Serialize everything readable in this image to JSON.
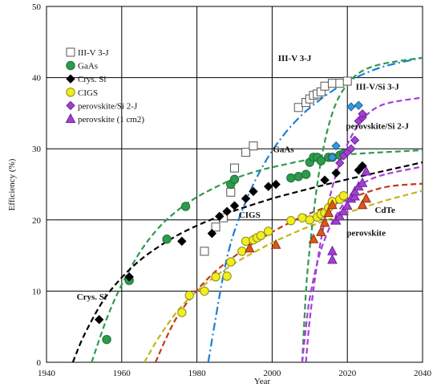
{
  "chart_data": {
    "type": "scatter",
    "title": "",
    "xlabel": "Year",
    "ylabel": "Efficiency (%)",
    "xlim": [
      1940,
      2040
    ],
    "ylim": [
      0,
      50
    ],
    "xticks": [
      1940,
      1960,
      1980,
      2000,
      2020,
      2040
    ],
    "yticks": [
      0,
      10,
      20,
      30,
      40,
      50
    ],
    "grid": true,
    "legend_position": "top-left",
    "legend": [
      {
        "label": "III-V 3-J",
        "marker": "square",
        "fill": "#ffffff",
        "stroke": "#555555"
      },
      {
        "label": "GaAs",
        "marker": "circle",
        "fill": "#2e9a4c",
        "stroke": "#1f6e35"
      },
      {
        "label": "Crys. Si",
        "marker": "diamond",
        "fill": "#000000",
        "stroke": "#000000"
      },
      {
        "label": "CIGS",
        "marker": "circle",
        "fill": "#f2ee1c",
        "stroke": "#8a8a20"
      },
      {
        "label": "perovskite/Si 2-J",
        "marker": "diamond",
        "fill": "#a33fd6",
        "stroke": "#6d2494"
      },
      {
        "label": "perovskite (1 cm2)",
        "marker": "triangle",
        "fill": "#a33fd6",
        "stroke": "#6d2494"
      }
    ],
    "series": [
      {
        "marker": "square",
        "fill": "#ffffff",
        "stroke": "#555555",
        "x": [
          1982,
          1985,
          1987,
          1989,
          1990,
          1993,
          1995,
          2007,
          2009,
          2010,
          2011,
          2012,
          2013,
          2014,
          2016,
          2018,
          2020
        ],
        "y": [
          15.6,
          19.0,
          20.3,
          23.9,
          27.3,
          29.5,
          30.4,
          35.8,
          36.5,
          37.0,
          37.5,
          37.7,
          38.0,
          38.8,
          39.2,
          39.2,
          39.5
        ]
      },
      {
        "marker": "circle",
        "fill": "#2e9a4c",
        "stroke": "#1f6e35",
        "x": [
          1956,
          1962,
          1972,
          1977,
          1989,
          1990,
          2005,
          2007,
          2009,
          2010,
          2011,
          2012,
          2013,
          2015,
          2016,
          2018,
          2019
        ],
        "y": [
          3.2,
          11.5,
          17.3,
          21.9,
          25.0,
          25.7,
          25.9,
          26.1,
          26.4,
          28.1,
          28.8,
          28.8,
          28.3,
          28.8,
          28.8,
          29.1,
          29.3
        ]
      },
      {
        "marker": "diamond",
        "fill": "#000000",
        "stroke": "#000000",
        "x": [
          1954,
          1962,
          1976,
          1984,
          1986,
          1988,
          1990,
          1993,
          1995,
          1999,
          2001,
          2014,
          2017,
          2023,
          2024
        ],
        "y": [
          6.0,
          12.0,
          17.0,
          18.1,
          20.5,
          21.2,
          22.0,
          23.0,
          24.0,
          24.7,
          25.0,
          25.6,
          26.6,
          27.0,
          27.6
        ]
      },
      {
        "marker": "circle",
        "fill": "#f2ee1c",
        "stroke": "#8a8a20",
        "x": [
          1976,
          1978,
          1982,
          1985,
          1988,
          1989,
          1992,
          1993,
          1995,
          1996,
          1997,
          1999,
          2005,
          2008,
          2010,
          2012,
          2013,
          2014,
          2015,
          2016,
          2016,
          2018,
          2019
        ],
        "y": [
          7.0,
          9.4,
          10.0,
          12.0,
          12.1,
          14.1,
          15.6,
          17.0,
          17.2,
          17.5,
          17.8,
          18.4,
          19.9,
          20.3,
          20.0,
          20.4,
          20.8,
          21.0,
          21.7,
          22.3,
          22.6,
          22.9,
          23.4
        ]
      },
      {
        "marker": "triangle",
        "fill": "#e0551c",
        "stroke": "#8a3312",
        "x": [
          1994,
          2001,
          2011,
          2013,
          2014,
          2015,
          2016,
          2024,
          2025
        ],
        "y": [
          16.0,
          16.5,
          17.3,
          18.3,
          19.6,
          21.0,
          22.1,
          22.1,
          23.0
        ]
      },
      {
        "marker": "diamond",
        "fill": "#3399dd",
        "stroke": "#1f6699",
        "x": [
          2016,
          2017,
          2021,
          2023
        ],
        "y": [
          28.8,
          30.4,
          35.9,
          36.1
        ]
      },
      {
        "marker": "diamond",
        "fill": "#a33fd6",
        "stroke": "#6d2494",
        "x": [
          2018,
          2019,
          2020,
          2021,
          2022,
          2023,
          2024,
          2024
        ],
        "y": [
          28.0,
          29.0,
          29.5,
          30.0,
          31.2,
          33.9,
          34.4,
          34.9
        ]
      },
      {
        "marker": "triangle",
        "fill": "#a33fd6",
        "stroke": "#6d2494",
        "x": [
          2016,
          2016,
          2017,
          2018,
          2019,
          2020,
          2021,
          2022,
          2022,
          2023,
          2024,
          2025
        ],
        "y": [
          14.4,
          15.6,
          19.9,
          20.5,
          21.2,
          22.0,
          23.0,
          23.3,
          24.0,
          24.7,
          25.2,
          26.8
        ]
      }
    ],
    "fit_curves": [
      {
        "color": "#1a7fd4",
        "dash": "10,4,2,4",
        "x": [
          1983,
          1988,
          1993,
          1998,
          2003,
          2008,
          2013,
          2018,
          2023,
          2030,
          2040
        ],
        "y": [
          0,
          14.7,
          22.6,
          28.0,
          31.9,
          34.8,
          37.0,
          38.8,
          40.2,
          41.6,
          42.8
        ]
      },
      {
        "color": "#2e9a4c",
        "dash": "7,4",
        "x": [
          1952,
          1956,
          1960,
          1965,
          1970,
          1975,
          1980,
          1985,
          1990,
          1995,
          2000,
          2010,
          2020,
          2040
        ],
        "y": [
          0,
          6.1,
          10.9,
          15.6,
          19.0,
          21.4,
          23.2,
          24.6,
          25.8,
          26.7,
          27.4,
          28.5,
          29.2,
          29.8
        ]
      },
      {
        "color": "#000000",
        "dash": "7,4",
        "x": [
          1947,
          1950,
          1955,
          1960,
          1965,
          1970,
          1975,
          1980,
          1985,
          1990,
          2000,
          2010,
          2020,
          2040
        ],
        "y": [
          0,
          3.8,
          8.6,
          11.9,
          14.4,
          16.3,
          17.9,
          19.2,
          20.3,
          21.3,
          23.0,
          24.4,
          25.7,
          28.1
        ]
      },
      {
        "color": "#c4b41c",
        "dash": "7,4",
        "x": [
          1966,
          1970,
          1975,
          1980,
          1985,
          1990,
          1995,
          2000,
          2005,
          2010,
          2020,
          2030,
          2040
        ],
        "y": [
          0,
          3.6,
          7.3,
          10.0,
          12.1,
          13.9,
          15.4,
          16.8,
          18.0,
          19.1,
          21.0,
          22.7,
          24.1
        ]
      },
      {
        "color": "#c23a18",
        "dash": "7,4",
        "x": [
          1969,
          1972,
          1975,
          1980,
          1985,
          1990,
          1995,
          2000,
          2005,
          2010,
          2020,
          2030,
          2040
        ],
        "y": [
          0,
          3.6,
          6.6,
          10.1,
          12.8,
          14.9,
          16.7,
          18.3,
          19.7,
          20.9,
          22.9,
          24.6,
          25.1
        ]
      },
      {
        "color": "#2e9a4c",
        "dash": "7,4",
        "x": [
          2008,
          2009,
          2010,
          2012,
          2014,
          2016,
          2018,
          2020,
          2022,
          2025,
          2030,
          2040
        ],
        "y": [
          0,
          10.0,
          16.0,
          25.0,
          31.0,
          35.0,
          37.5,
          39.0,
          40.2,
          41.2,
          42.0,
          42.8
        ]
      },
      {
        "color": "#a33fd6",
        "dash": "7,4",
        "x": [
          2009,
          2010,
          2012,
          2014,
          2016,
          2018,
          2020,
          2022,
          2025,
          2030,
          2040
        ],
        "y": [
          0,
          6.0,
          14.0,
          20.0,
          24.6,
          28.0,
          30.6,
          32.6,
          34.7,
          36.3,
          37.2
        ]
      },
      {
        "color": "#a33fd6",
        "dash": "7,4",
        "x": [
          2008,
          2009,
          2010,
          2012,
          2014,
          2016,
          2018,
          2020,
          2022,
          2025,
          2030,
          2040
        ],
        "y": [
          0,
          5.0,
          9.0,
          14.0,
          17.3,
          19.7,
          21.5,
          23.0,
          24.2,
          25.4,
          26.4,
          27.5
        ]
      }
    ],
    "annotations": [
      {
        "text": "III-V 3-J",
        "x": 2006,
        "y": 42.3
      },
      {
        "text": "III-V/Si 3-J",
        "x": 2028,
        "y": 38.3
      },
      {
        "text": "GaAs",
        "x": 2003,
        "y": 29.5
      },
      {
        "text": "perovskite/Si 2-J",
        "x": 2028,
        "y": 32.8
      },
      {
        "text": "CIGS",
        "x": 1994,
        "y": 20.3
      },
      {
        "text": "CdTe",
        "x": 2030,
        "y": 21.0
      },
      {
        "text": "perovskite",
        "x": 2025,
        "y": 17.8
      },
      {
        "text": "Crys. Si",
        "x": 1952,
        "y": 8.8
      }
    ]
  }
}
